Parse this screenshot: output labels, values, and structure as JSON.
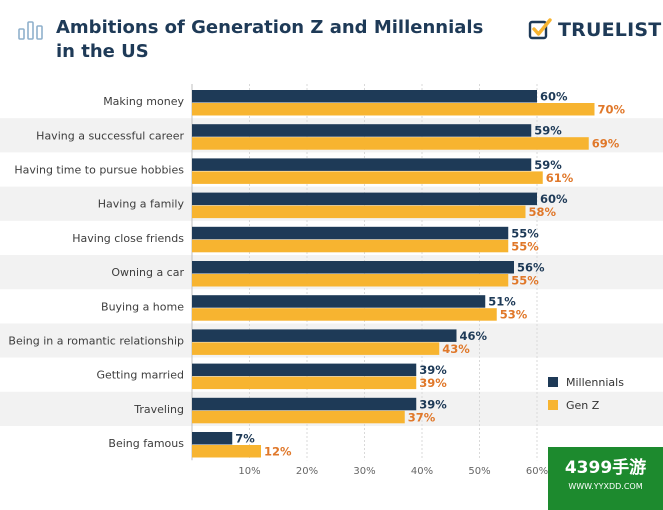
{
  "header": {
    "title": "Ambitions of Generation Z and Millennials in the US",
    "icon": "bar-chart-icon"
  },
  "logo": {
    "text": "TRUELIST",
    "icon": "checkbox-check-icon"
  },
  "watermark": {
    "main": "4399手游",
    "sub": "WWW.YYXDD.COM"
  },
  "colors": {
    "millennials": "#1e3a57",
    "genz": "#f7b430",
    "genz_label": "#e0782a",
    "stripe": "#f2f2f2"
  },
  "chart_data": {
    "type": "bar",
    "orientation": "horizontal",
    "categories": [
      "Making money",
      "Having a successful career",
      "Having time to pursue hobbies",
      "Having a family",
      "Having close friends",
      "Owning a car",
      "Buying a home",
      "Being in a romantic relationship",
      "Getting married",
      "Traveling",
      "Being famous"
    ],
    "series": [
      {
        "name": "Millennials",
        "values": [
          60,
          59,
          59,
          60,
          55,
          56,
          51,
          46,
          39,
          39,
          7
        ],
        "labels": [
          "60%",
          "59%",
          "59%",
          "60%",
          "55%",
          "56%",
          "51%",
          "46%",
          "39%",
          "39%",
          "7%"
        ]
      },
      {
        "name": "Gen Z",
        "values": [
          70,
          69,
          61,
          58,
          55,
          55,
          53,
          43,
          39,
          37,
          12
        ],
        "labels": [
          "70%",
          "69%",
          "61%",
          "58%",
          "55%",
          "55%",
          "53%",
          "43%",
          "39%",
          "37%",
          "12%"
        ]
      }
    ],
    "x_ticks": [
      10,
      20,
      30,
      40,
      50,
      60
    ],
    "x_tick_labels": [
      "10%",
      "20%",
      "30%",
      "40%",
      "50%",
      "60%"
    ],
    "xlim": [
      0,
      80
    ],
    "legend": {
      "placement": "right",
      "entries": [
        "Millennials",
        "Gen Z"
      ]
    },
    "grid": true
  }
}
